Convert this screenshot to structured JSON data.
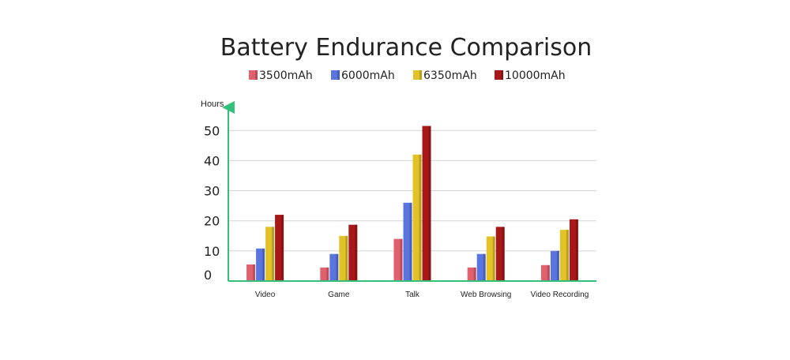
{
  "chart_data": {
    "type": "bar",
    "title": "Battery Endurance Comparison",
    "ylabel": "Hours",
    "xlabel": "",
    "categories": [
      "Video",
      "Game",
      "Talk",
      "Web Browsing",
      "Video Recording"
    ],
    "series": [
      {
        "name": "3500mAh",
        "values": [
          5.5,
          4.5,
          14,
          4.5,
          5.3
        ],
        "color": "#e0606e"
      },
      {
        "name": "6000mAh",
        "values": [
          10.8,
          9,
          26,
          9,
          10
        ],
        "color": "#5a74e0"
      },
      {
        "name": "6350mAh",
        "values": [
          18,
          15,
          42,
          14.8,
          17
        ],
        "color": "#e2c227"
      },
      {
        "name": "10000mAh",
        "values": [
          22,
          18.7,
          51.5,
          18,
          20.5
        ],
        "color": "#a81818"
      }
    ],
    "yticks": [
      0,
      10,
      20,
      30,
      40,
      50
    ],
    "ylim": [
      0,
      54
    ],
    "grid": true,
    "legend": "top",
    "axis_color": "#33c07a"
  }
}
